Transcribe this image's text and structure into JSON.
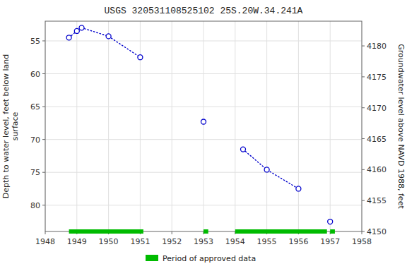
{
  "chart_data": {
    "type": "line",
    "title": "USGS 320531108525102 25S.20W.34.241A",
    "ylabel": "Depth to water level, feet below land\nsurface",
    "y2label": "Groundwater level above NAVD 1988, feet",
    "xlim": [
      1948,
      1958
    ],
    "xticks": [
      1948,
      1949,
      1950,
      1951,
      1952,
      1953,
      1954,
      1955,
      1956,
      1957,
      1958
    ],
    "ylim": [
      84,
      52
    ],
    "yticks": [
      55,
      60,
      65,
      70,
      75,
      80
    ],
    "y2lim": [
      4150,
      4184
    ],
    "y2ticks": [
      4150,
      4155,
      4160,
      4165,
      4170,
      4175,
      4180
    ],
    "grid": true,
    "legend": "bottom",
    "series": [
      {
        "type": "line",
        "color": "#0000CC",
        "line_style": "dotted",
        "marker": "circle",
        "x": [
          1948.75,
          1949.0,
          1949.15,
          1950.0,
          1951.0
        ],
        "values": [
          54.5,
          53.5,
          53.0,
          54.3,
          57.5
        ]
      },
      {
        "type": "line",
        "color": "#0000CC",
        "line_style": "dotted",
        "marker": "circle",
        "x": [
          1954.25,
          1955.0,
          1956.0
        ],
        "values": [
          71.5,
          74.6,
          77.5
        ]
      },
      {
        "type": "scatter",
        "color": "#0000CC",
        "marker": "circle",
        "x": [
          1953.0
        ],
        "values": [
          67.3
        ]
      },
      {
        "type": "scatter",
        "color": "#0000CC",
        "marker": "circle",
        "x": [
          1957.0
        ],
        "values": [
          82.5
        ]
      },
      {
        "type": "range",
        "name": "Period of approved data",
        "color": "#00BB00",
        "ranges": [
          [
            1948.75,
            1951.1
          ],
          [
            1953.0,
            1953.15
          ],
          [
            1954.0,
            1956.9
          ],
          [
            1957.0,
            1957.15
          ]
        ]
      }
    ]
  }
}
